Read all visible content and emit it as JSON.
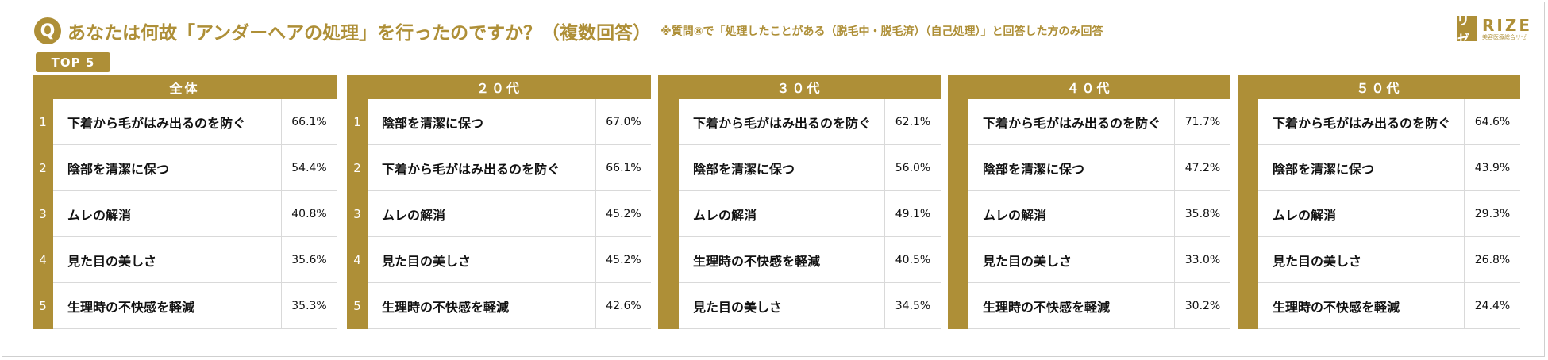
{
  "title": {
    "badge": "Q",
    "question": "あなたは何故「アンダーヘアの処理」を行ったのですか？（複数回答）",
    "note": "※質問⑧で「処理したことがある（脱毛中・脱毛済）（自己処理）」と回答した方のみ回答"
  },
  "logo": {
    "mark": "リゼ",
    "word": "RIZE",
    "sub": "美容医療総合リゼ"
  },
  "top_label": "TOP 5",
  "colors": {
    "accent": "#ae8f37",
    "grid": "#d9d9d9"
  },
  "chart_data": [
    {
      "type": "table",
      "group": "全体",
      "ranks": [
        "1",
        "2",
        "3",
        "4",
        "5"
      ],
      "items": [
        "下着から毛がはみ出るのを防ぐ",
        "陰部を清潔に保つ",
        "ムレの解消",
        "見た目の美しさ",
        "生理時の不快感を軽減"
      ],
      "values": [
        "66.1%",
        "54.4%",
        "40.8%",
        "35.6%",
        "35.3%"
      ]
    },
    {
      "type": "table",
      "group": "２０代",
      "ranks": [
        "1",
        "2",
        "3",
        "4",
        "5"
      ],
      "items": [
        "陰部を清潔に保つ",
        "下着から毛がはみ出るのを防ぐ",
        "ムレの解消",
        "見た目の美しさ",
        "生理時の不快感を軽減"
      ],
      "values": [
        "67.0%",
        "66.1%",
        "45.2%",
        "45.2%",
        "42.6%"
      ]
    },
    {
      "type": "table",
      "group": "３０代",
      "items": [
        "下着から毛がはみ出るのを防ぐ",
        "陰部を清潔に保つ",
        "ムレの解消",
        "生理時の不快感を軽減",
        "見た目の美しさ"
      ],
      "values": [
        "62.1%",
        "56.0%",
        "49.1%",
        "40.5%",
        "34.5%"
      ]
    },
    {
      "type": "table",
      "group": "４０代",
      "items": [
        "下着から毛がはみ出るのを防ぐ",
        "陰部を清潔に保つ",
        "ムレの解消",
        "見た目の美しさ",
        "生理時の不快感を軽減"
      ],
      "values": [
        "71.7%",
        "47.2%",
        "35.8%",
        "33.0%",
        "30.2%"
      ]
    },
    {
      "type": "table",
      "group": "５０代",
      "items": [
        "下着から毛がはみ出るのを防ぐ",
        "陰部を清潔に保つ",
        "ムレの解消",
        "見た目の美しさ",
        "生理時の不快感を軽減"
      ],
      "values": [
        "64.6%",
        "43.9%",
        "29.3%",
        "26.8%",
        "24.4%"
      ]
    }
  ]
}
